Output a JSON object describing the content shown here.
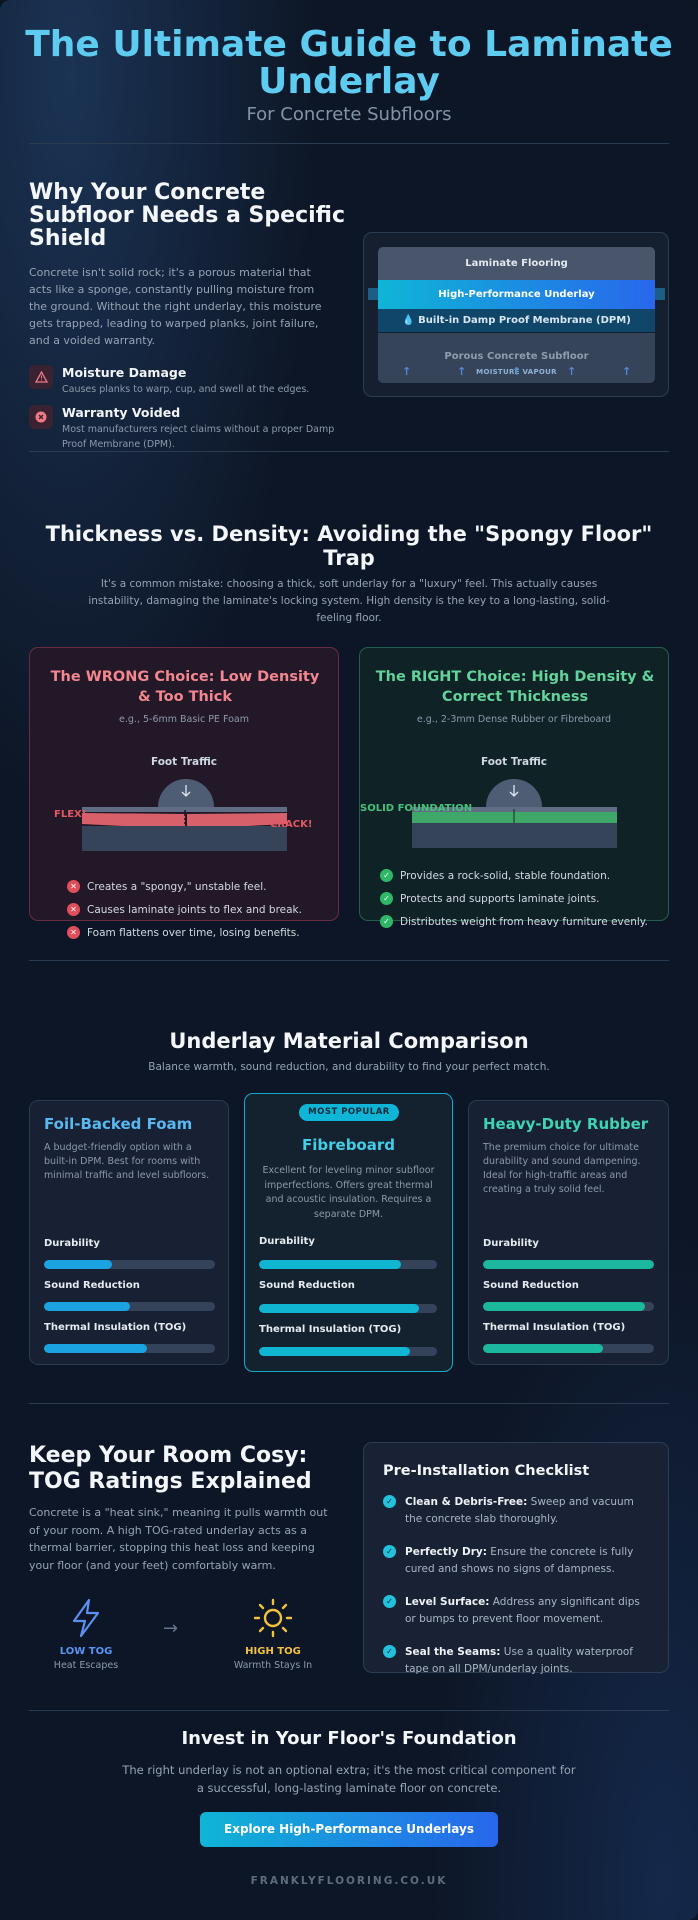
{
  "header": {
    "title": "The Ultimate Guide to Laminate Underlay",
    "subtitle": "For Concrete Subfloors"
  },
  "why": {
    "heading": "Why Your Concrete Subfloor Needs a Specific Shield",
    "body": "Concrete isn't solid rock; it's a porous material that acts like a sponge, constantly pulling moisture from the ground. Without the right underlay, this moisture gets trapped, leading to warped planks, joint failure, and a voided warranty.",
    "risks": [
      {
        "title": "Moisture Damage",
        "desc": "Causes planks to warp, cup, and swell at the edges.",
        "icon": "warning-icon"
      },
      {
        "title": "Warranty Voided",
        "desc": "Most manufacturers reject claims without a proper Damp Proof Membrane (DPM).",
        "icon": "x-circle-icon"
      }
    ],
    "layers": {
      "laminate": "Laminate Flooring",
      "underlay": "High-Performance Underlay",
      "dpm": "Built-in Damp Proof Membrane (DPM)",
      "subfloor": "Porous Concrete Subfloor",
      "vapour": "MOISTURE VAPOUR"
    }
  },
  "thickness": {
    "heading": "Thickness vs. Density: Avoiding the \"Spongy Floor\" Trap",
    "body": "It's a common mistake: choosing a thick, soft underlay for a \"luxury\" feel. This actually causes instability, damaging the laminate's locking system. High density is the key to a long-lasting, solid-feeling floor.",
    "wrong": {
      "title": "The WRONG Choice: Low Density & Too Thick",
      "example": "e.g., 5-6mm Basic PE Foam",
      "traffic": "Foot Traffic",
      "flex": "FLEX!",
      "crack": "CRACK!",
      "points": [
        "Creates a \"spongy,\" unstable feel.",
        "Causes laminate joints to flex and break.",
        "Foam flattens over time, losing benefits."
      ]
    },
    "right": {
      "title": "The RIGHT Choice: High Density & Correct Thickness",
      "example": "e.g., 2-3mm Dense Rubber or Fibreboard",
      "traffic": "Foot Traffic",
      "solid": "SOLID FOUNDATION",
      "points": [
        "Provides a rock-solid, stable foundation.",
        "Protects and supports laminate joints.",
        "Distributes weight from heavy furniture evenly."
      ]
    }
  },
  "materials": {
    "heading": "Underlay Material Comparison",
    "subheading": "Balance warmth, sound reduction, and durability to find your perfect match.",
    "metric_labels": {
      "durability": "Durability",
      "sound": "Sound Reduction",
      "thermal": "Thermal Insulation (TOG)"
    },
    "popular_label": "MOST POPULAR",
    "items": [
      {
        "name": "Foil-Backed Foam",
        "desc": "A budget-friendly option with a built-in DPM. Best for rooms with minimal traffic and level subfloors.",
        "durability": 0.4,
        "sound": 0.5,
        "thermal": 0.6,
        "color": "#1aa3e0"
      },
      {
        "name": "Fibreboard",
        "desc": "Excellent for leveling minor subfloor imperfections. Offers great thermal and acoustic insulation. Requires a separate DPM.",
        "durability": 0.8,
        "sound": 0.9,
        "thermal": 0.85,
        "color": "#10b5d2"
      },
      {
        "name": "Heavy-Duty Rubber",
        "desc": "The premium choice for ultimate durability and sound dampening. Ideal for high-traffic areas and creating a truly solid feel.",
        "durability": 1.0,
        "sound": 0.95,
        "thermal": 0.7,
        "color": "#1bb89d"
      }
    ]
  },
  "tog": {
    "heading": "Keep Your Room Cosy: TOG Ratings Explained",
    "body": "Concrete is a \"heat sink,\" meaning it pulls warmth out of your room. A high TOG-rated underlay acts as a thermal barrier, stopping this heat loss and keeping your floor (and your feet) comfortably warm.",
    "low": {
      "label": "LOW TOG",
      "desc": "Heat Escapes",
      "icon": "lightning-icon"
    },
    "arrow": "→",
    "high": {
      "label": "HIGH TOG",
      "desc": "Warmth Stays In",
      "icon": "sun-icon"
    }
  },
  "checklist": {
    "heading": "Pre-Installation Checklist",
    "items": [
      {
        "bold": "Clean & Debris-Free:",
        "text": " Sweep and vacuum the concrete slab thoroughly."
      },
      {
        "bold": "Perfectly Dry:",
        "text": " Ensure the concrete is fully cured and shows no signs of dampness."
      },
      {
        "bold": "Level Surface:",
        "text": " Address any significant dips or bumps to prevent floor movement."
      },
      {
        "bold": "Seal the Seams:",
        "text": " Use a quality waterproof tape on all DPM/underlay joints."
      }
    ]
  },
  "footer": {
    "heading": "Invest in Your Floor's Foundation",
    "body": "The right underlay is not an optional extra; it's the most critical component for a successful, long-lasting laminate floor on concrete.",
    "cta": "Explore High-Performance Underlays",
    "brand": "FRANKLYFLOORING.CO.UK"
  }
}
